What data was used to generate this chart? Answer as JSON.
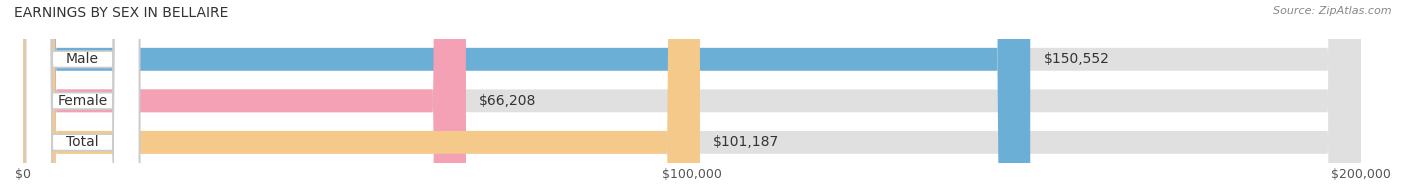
{
  "title": "EARNINGS BY SEX IN BELLAIRE",
  "source": "Source: ZipAtlas.com",
  "categories": [
    "Male",
    "Female",
    "Total"
  ],
  "values": [
    150552,
    66208,
    101187
  ],
  "bar_colors": [
    "#6baed6",
    "#f4a0b5",
    "#f5c98a"
  ],
  "bar_bg_color": "#e8e8e8",
  "bar_label_colors": [
    "#ffffff",
    "#555555",
    "#555555"
  ],
  "xmax": 200000,
  "xticks": [
    0,
    100000,
    200000
  ],
  "xtick_labels": [
    "$0",
    "$100,000",
    "$200,000"
  ],
  "value_labels": [
    "$150,552",
    "$66,208",
    "$101,187"
  ],
  "title_fontsize": 10,
  "source_fontsize": 8,
  "label_fontsize": 10,
  "tick_fontsize": 9,
  "background_color": "#ffffff"
}
